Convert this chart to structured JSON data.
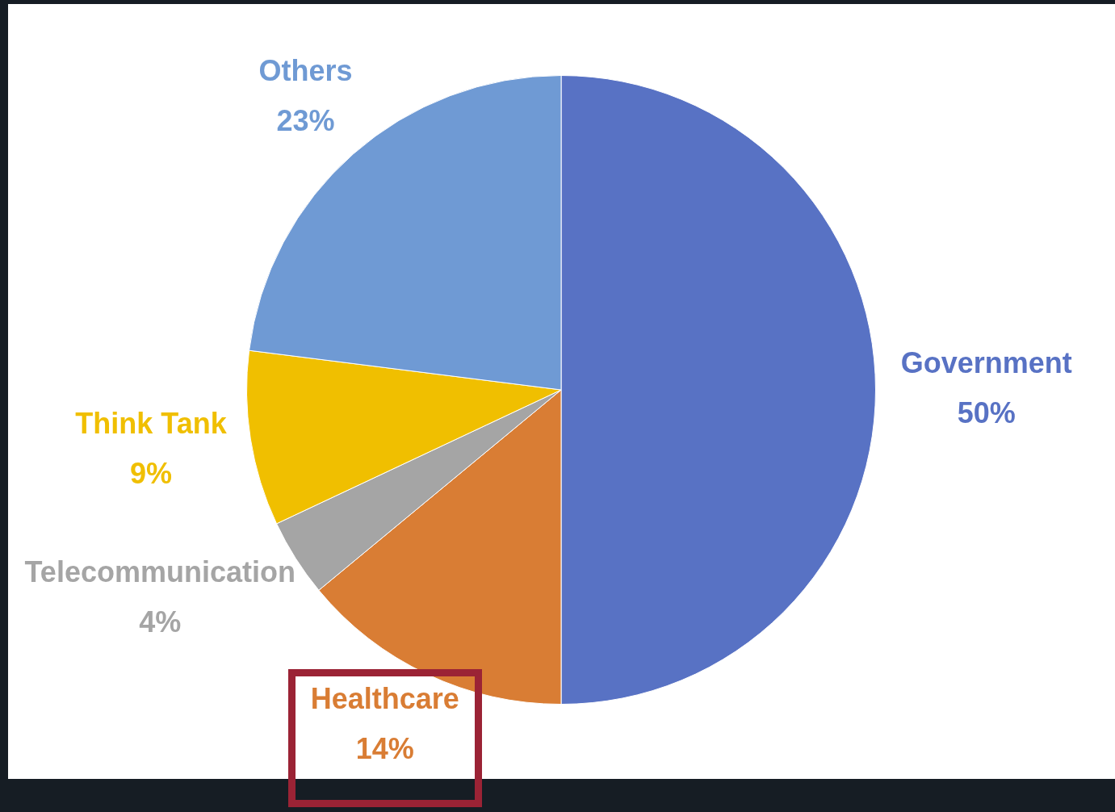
{
  "chart_data": {
    "type": "pie",
    "categories": [
      "Government",
      "Healthcare",
      "Telecommunication",
      "Think Tank",
      "Others"
    ],
    "values": [
      50,
      14,
      4,
      9,
      23
    ],
    "colors": [
      "#5872c4",
      "#d97d34",
      "#a5a5a5",
      "#f0bf00",
      "#6f9ad4"
    ],
    "value_labels": [
      "50%",
      "14%",
      "4%",
      "9%",
      "23%"
    ],
    "legend": false
  }
}
